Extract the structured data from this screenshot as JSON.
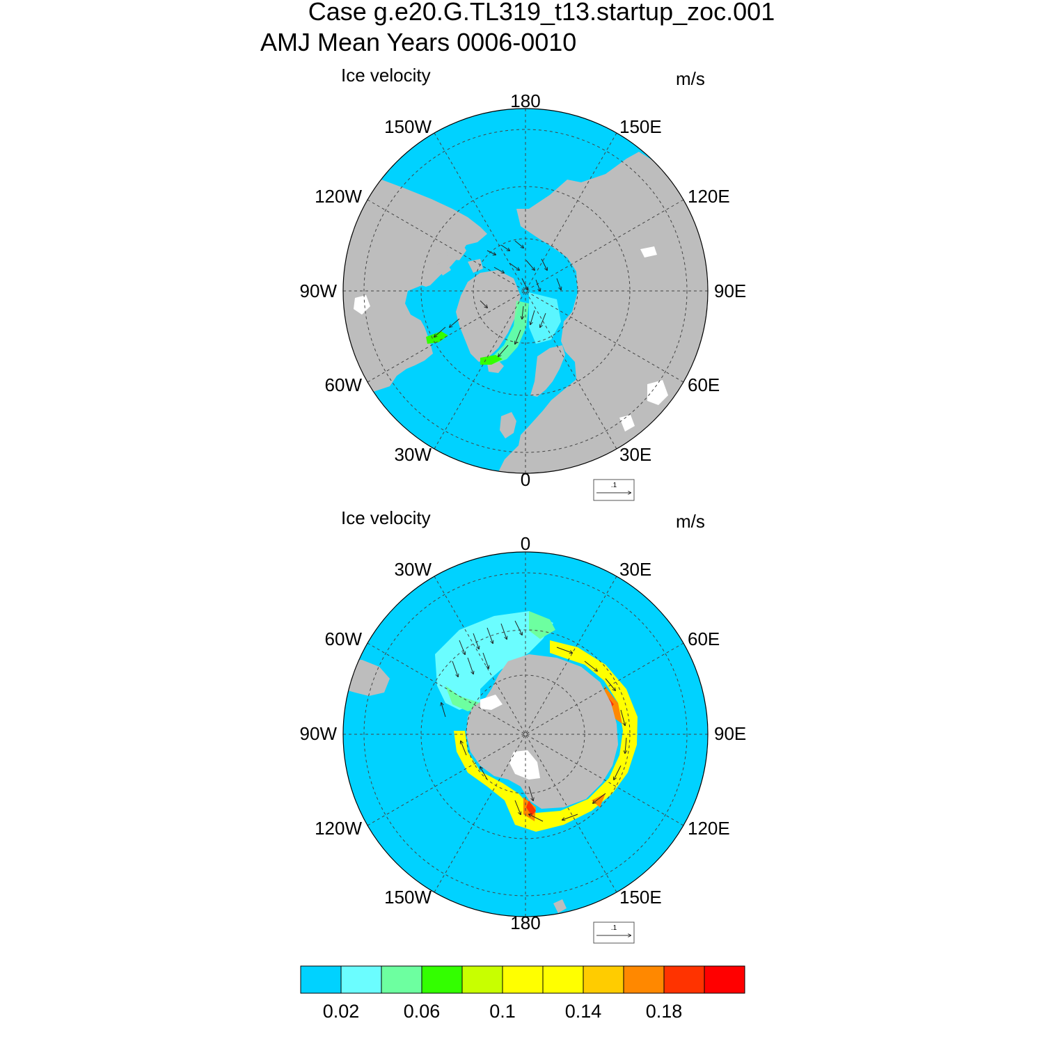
{
  "title": {
    "line1": "Case g.e20.G.TL319_t13.startup_zoc.001",
    "line2": "AMJ Mean   Years 0006-0010"
  },
  "panels": [
    {
      "hemisphere": "north",
      "left_label": "Ice velocity",
      "right_label": "m/s",
      "longitude_labels": {
        "top": "180",
        "top_right": "150E",
        "upper_right": "120E",
        "right": "90E",
        "lower_right": "60E",
        "bottom_right": "30E",
        "bottom": "0",
        "bottom_left": "30W",
        "lower_left": "60W",
        "left": "90W",
        "upper_left": "120W",
        "top_left": "150W"
      },
      "reference_vector_label": ".1"
    },
    {
      "hemisphere": "south",
      "left_label": "Ice velocity",
      "right_label": "m/s",
      "longitude_labels": {
        "top": "0",
        "top_right": "30E",
        "upper_right": "60E",
        "right": "90E",
        "lower_right": "120E",
        "bottom_right": "150E",
        "bottom": "180",
        "bottom_left": "150W",
        "lower_left": "120W",
        "left": "90W",
        "upper_left": "60W",
        "top_left": "30W"
      },
      "reference_vector_label": ".1"
    }
  ],
  "colorbar": {
    "colors": [
      "#00d2ff",
      "#6bfdff",
      "#6dffa0",
      "#33ff00",
      "#c8ff00",
      "#ffff00",
      "#ffff00",
      "#ffcc00",
      "#ff8800",
      "#ff3300",
      "#ff0000"
    ],
    "tick_labels": [
      "0.02",
      "0.06",
      "0.1",
      "0.14",
      "0.18"
    ]
  },
  "colors": {
    "ocean": "#00d2ff",
    "land": "#bdbdbd",
    "ice_shelf": "#ffffff",
    "grid": "#444444"
  }
}
